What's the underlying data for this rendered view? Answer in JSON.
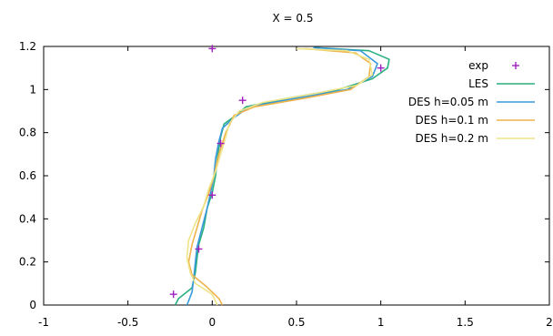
{
  "chart_data": {
    "type": "line",
    "title": "X = 0.5",
    "xlim": [
      -1,
      2
    ],
    "ylim": [
      0,
      1.2
    ],
    "x_ticks": [
      -1,
      -0.5,
      0,
      0.5,
      1,
      1.5,
      2
    ],
    "y_ticks": [
      0,
      0.2,
      0.4,
      0.6,
      0.8,
      1,
      1.2
    ],
    "x_tick_labels": [
      "-1",
      "-0.5",
      "0",
      "0.5",
      "1",
      "1.5",
      "2"
    ],
    "y_tick_labels": [
      "0",
      "0.2",
      "0.4",
      "0.6",
      "0.8",
      "1",
      "1.2"
    ],
    "grid": false,
    "legend_position": "top-right",
    "series": [
      {
        "name": "exp",
        "kind": "points",
        "color": "#a020c0",
        "points": [
          [
            0,
            1.19
          ],
          [
            1.0,
            1.1
          ],
          [
            0.18,
            0.95
          ],
          [
            0.05,
            0.75
          ],
          [
            0.0,
            0.51
          ],
          [
            -0.08,
            0.26
          ],
          [
            -0.23,
            0.05
          ]
        ]
      },
      {
        "name": "LES",
        "kind": "line",
        "color": "#2ab07f",
        "points": [
          [
            -0.22,
            0.0
          ],
          [
            -0.2,
            0.03
          ],
          [
            -0.12,
            0.08
          ],
          [
            -0.1,
            0.15
          ],
          [
            -0.09,
            0.22
          ],
          [
            -0.08,
            0.28
          ],
          [
            -0.05,
            0.36
          ],
          [
            -0.03,
            0.45
          ],
          [
            0.0,
            0.52
          ],
          [
            0.02,
            0.6
          ],
          [
            0.03,
            0.68
          ],
          [
            0.05,
            0.78
          ],
          [
            0.07,
            0.84
          ],
          [
            0.14,
            0.88
          ],
          [
            0.2,
            0.92
          ],
          [
            0.45,
            0.96
          ],
          [
            0.75,
            1.0
          ],
          [
            0.95,
            1.05
          ],
          [
            1.04,
            1.1
          ],
          [
            1.05,
            1.14
          ],
          [
            0.93,
            1.18
          ],
          [
            0.6,
            1.195
          ]
        ]
      },
      {
        "name": "DES h=0.05 m",
        "kind": "line",
        "color": "#3a9ad9",
        "points": [
          [
            -0.15,
            0.0
          ],
          [
            -0.14,
            0.02
          ],
          [
            -0.12,
            0.06
          ],
          [
            -0.11,
            0.12
          ],
          [
            -0.1,
            0.2
          ],
          [
            -0.09,
            0.27
          ],
          [
            -0.06,
            0.36
          ],
          [
            -0.03,
            0.45
          ],
          [
            -0.01,
            0.52
          ],
          [
            0.01,
            0.6
          ],
          [
            0.02,
            0.68
          ],
          [
            0.04,
            0.76
          ],
          [
            0.06,
            0.82
          ],
          [
            0.13,
            0.87
          ],
          [
            0.22,
            0.92
          ],
          [
            0.5,
            0.96
          ],
          [
            0.8,
            1.0
          ],
          [
            0.95,
            1.06
          ],
          [
            0.98,
            1.12
          ],
          [
            0.88,
            1.18
          ],
          [
            0.6,
            1.195
          ]
        ]
      },
      {
        "name": "DES h=0.1 m",
        "kind": "line",
        "color": "#eeb24a",
        "points": [
          [
            0.06,
            0.0
          ],
          [
            0.04,
            0.03
          ],
          [
            -0.04,
            0.09
          ],
          [
            -0.12,
            0.14
          ],
          [
            -0.14,
            0.2
          ],
          [
            -0.12,
            0.28
          ],
          [
            -0.09,
            0.36
          ],
          [
            -0.06,
            0.44
          ],
          [
            -0.02,
            0.52
          ],
          [
            0.01,
            0.6
          ],
          [
            0.04,
            0.7
          ],
          [
            0.08,
            0.8
          ],
          [
            0.13,
            0.88
          ],
          [
            0.25,
            0.92
          ],
          [
            0.55,
            0.96
          ],
          [
            0.82,
            1.0
          ],
          [
            0.93,
            1.06
          ],
          [
            0.94,
            1.12
          ],
          [
            0.85,
            1.17
          ],
          [
            0.55,
            1.19
          ]
        ]
      },
      {
        "name": "DES h=0.2 m",
        "kind": "line",
        "color": "#eee48a",
        "points": [
          [
            0.03,
            0.0
          ],
          [
            0.0,
            0.05
          ],
          [
            -0.1,
            0.1
          ],
          [
            -0.13,
            0.15
          ],
          [
            -0.15,
            0.22
          ],
          [
            -0.14,
            0.3
          ],
          [
            -0.1,
            0.38
          ],
          [
            -0.05,
            0.46
          ],
          [
            -0.02,
            0.54
          ],
          [
            0.02,
            0.62
          ],
          [
            0.05,
            0.7
          ],
          [
            0.08,
            0.78
          ],
          [
            0.1,
            0.84
          ],
          [
            0.16,
            0.9
          ],
          [
            0.3,
            0.94
          ],
          [
            0.6,
            0.98
          ],
          [
            0.86,
            1.02
          ],
          [
            0.95,
            1.07
          ],
          [
            0.93,
            1.14
          ],
          [
            0.8,
            1.18
          ],
          [
            0.5,
            1.19
          ]
        ]
      }
    ]
  }
}
